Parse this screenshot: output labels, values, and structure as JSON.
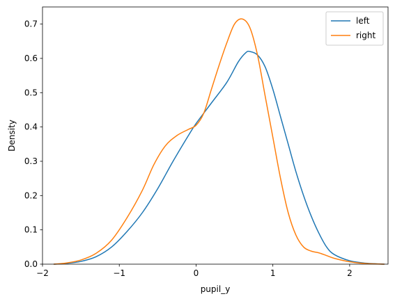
{
  "chart_data": {
    "type": "line",
    "xlabel": "pupil_y",
    "ylabel": "Density",
    "xlim": [
      -2.0,
      2.5
    ],
    "ylim": [
      0,
      0.75
    ],
    "x_ticks": [
      -2,
      -1,
      0,
      1,
      2
    ],
    "x_tick_labels": [
      "−2",
      "−1",
      "0",
      "1",
      "2"
    ],
    "y_ticks": [
      0.0,
      0.1,
      0.2,
      0.3,
      0.4,
      0.5,
      0.6,
      0.7
    ],
    "y_tick_labels": [
      "0.0",
      "0.1",
      "0.2",
      "0.3",
      "0.4",
      "0.5",
      "0.6",
      "0.7"
    ],
    "grid": false,
    "legend_position": "top-right",
    "series": [
      {
        "name": "left",
        "color": "#1f77b4",
        "points": [
          [
            -1.85,
            0.0
          ],
          [
            -1.7,
            0.002
          ],
          [
            -1.5,
            0.008
          ],
          [
            -1.3,
            0.022
          ],
          [
            -1.1,
            0.05
          ],
          [
            -0.9,
            0.095
          ],
          [
            -0.7,
            0.15
          ],
          [
            -0.5,
            0.22
          ],
          [
            -0.3,
            0.3
          ],
          [
            -0.1,
            0.375
          ],
          [
            0.0,
            0.41
          ],
          [
            0.2,
            0.47
          ],
          [
            0.4,
            0.53
          ],
          [
            0.55,
            0.59
          ],
          [
            0.65,
            0.617
          ],
          [
            0.7,
            0.62
          ],
          [
            0.8,
            0.61
          ],
          [
            0.9,
            0.575
          ],
          [
            1.0,
            0.51
          ],
          [
            1.1,
            0.43
          ],
          [
            1.2,
            0.35
          ],
          [
            1.3,
            0.27
          ],
          [
            1.4,
            0.2
          ],
          [
            1.5,
            0.14
          ],
          [
            1.6,
            0.09
          ],
          [
            1.7,
            0.05
          ],
          [
            1.8,
            0.028
          ],
          [
            2.0,
            0.01
          ],
          [
            2.2,
            0.003
          ],
          [
            2.45,
            0.0
          ]
        ]
      },
      {
        "name": "right",
        "color": "#ff7f0e",
        "points": [
          [
            -1.85,
            0.0
          ],
          [
            -1.7,
            0.003
          ],
          [
            -1.5,
            0.012
          ],
          [
            -1.3,
            0.032
          ],
          [
            -1.1,
            0.07
          ],
          [
            -0.9,
            0.135
          ],
          [
            -0.7,
            0.215
          ],
          [
            -0.55,
            0.29
          ],
          [
            -0.4,
            0.345
          ],
          [
            -0.25,
            0.375
          ],
          [
            -0.1,
            0.393
          ],
          [
            0.0,
            0.405
          ],
          [
            0.1,
            0.44
          ],
          [
            0.2,
            0.51
          ],
          [
            0.3,
            0.58
          ],
          [
            0.4,
            0.645
          ],
          [
            0.5,
            0.7
          ],
          [
            0.6,
            0.715
          ],
          [
            0.7,
            0.69
          ],
          [
            0.8,
            0.61
          ],
          [
            0.9,
            0.49
          ],
          [
            1.0,
            0.37
          ],
          [
            1.1,
            0.25
          ],
          [
            1.2,
            0.15
          ],
          [
            1.3,
            0.085
          ],
          [
            1.4,
            0.05
          ],
          [
            1.5,
            0.038
          ],
          [
            1.6,
            0.033
          ],
          [
            1.7,
            0.025
          ],
          [
            1.8,
            0.017
          ],
          [
            2.0,
            0.007
          ],
          [
            2.2,
            0.002
          ],
          [
            2.45,
            0.0
          ]
        ]
      }
    ]
  }
}
